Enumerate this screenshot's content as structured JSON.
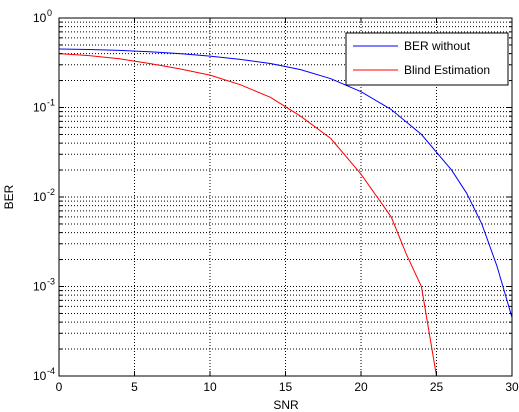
{
  "chart_data": {
    "type": "line",
    "title": "",
    "xlabel": "SNR",
    "ylabel": "BER",
    "xlim": [
      0,
      30
    ],
    "ylim": [
      0.0001,
      1
    ],
    "yscale": "log",
    "grid": true,
    "legend_position": "top-right",
    "x_ticks": [
      0,
      5,
      10,
      15,
      20,
      25,
      30
    ],
    "x_tick_labels": [
      "0",
      "5",
      "10",
      "15",
      "20",
      "25",
      "30"
    ],
    "y_ticks": [
      0.0001,
      0.001,
      0.01,
      0.1,
      1
    ],
    "y_tick_labels": [
      {
        "base": "10",
        "exp": "-4"
      },
      {
        "base": "10",
        "exp": "-3"
      },
      {
        "base": "10",
        "exp": "-2"
      },
      {
        "base": "10",
        "exp": "-1"
      },
      {
        "base": "10",
        "exp": "0"
      }
    ],
    "series": [
      {
        "name": "BER without",
        "color": "#0000ff",
        "points": [
          [
            0,
            0.45
          ],
          [
            2,
            0.445
          ],
          [
            4,
            0.435
          ],
          [
            6,
            0.42
          ],
          [
            8,
            0.4
          ],
          [
            10,
            0.375
          ],
          [
            12,
            0.345
          ],
          [
            14,
            0.31
          ],
          [
            16,
            0.265
          ],
          [
            18,
            0.21
          ],
          [
            20,
            0.15
          ],
          [
            22,
            0.095
          ],
          [
            24,
            0.05
          ],
          [
            26,
            0.02
          ],
          [
            27,
            0.011
          ],
          [
            28,
            0.005
          ],
          [
            29,
            0.0017
          ],
          [
            30,
            0.00045
          ]
        ]
      },
      {
        "name": "Blind Estimation",
        "color": "#ff0000",
        "points": [
          [
            0,
            0.4
          ],
          [
            2,
            0.38
          ],
          [
            4,
            0.35
          ],
          [
            6,
            0.31
          ],
          [
            8,
            0.27
          ],
          [
            10,
            0.23
          ],
          [
            12,
            0.18
          ],
          [
            14,
            0.13
          ],
          [
            16,
            0.08
          ],
          [
            18,
            0.045
          ],
          [
            20,
            0.018
          ],
          [
            22,
            0.006
          ],
          [
            23,
            0.0023
          ],
          [
            24,
            0.001
          ],
          [
            25,
            0.0001
          ]
        ]
      }
    ]
  }
}
